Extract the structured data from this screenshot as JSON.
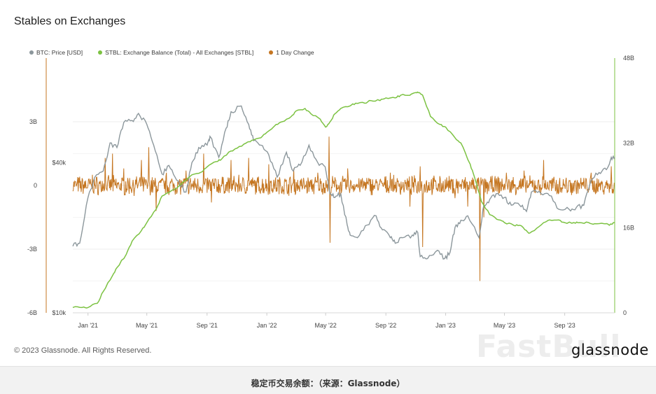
{
  "chart_data": {
    "type": "line",
    "title": "Stables on Exchanges",
    "series": [
      {
        "name": "BTC: Price [USD]",
        "color": "#8c979c",
        "axis": "btc-left",
        "x": [
          "2020-12-01",
          "2020-12-15",
          "2021-01-01",
          "2021-01-15",
          "2021-02-01",
          "2021-02-15",
          "2021-03-01",
          "2021-03-15",
          "2021-04-01",
          "2021-04-14",
          "2021-05-01",
          "2021-05-15",
          "2021-06-01",
          "2021-06-15",
          "2021-07-01",
          "2021-07-20",
          "2021-08-01",
          "2021-08-15",
          "2021-09-01",
          "2021-09-07",
          "2021-09-25",
          "2021-10-10",
          "2021-10-20",
          "2021-11-10",
          "2021-11-25",
          "2021-12-05",
          "2021-12-20",
          "2022-01-05",
          "2022-01-22",
          "2022-02-10",
          "2022-02-24",
          "2022-03-10",
          "2022-03-28",
          "2022-04-15",
          "2022-04-30",
          "2022-05-10",
          "2022-05-20",
          "2022-06-01",
          "2022-06-14",
          "2022-06-20",
          "2022-07-05",
          "2022-07-25",
          "2022-08-12",
          "2022-08-25",
          "2022-09-10",
          "2022-09-20",
          "2022-10-05",
          "2022-10-25",
          "2022-11-05",
          "2022-11-10",
          "2022-11-25",
          "2022-12-15",
          "2022-12-30",
          "2023-01-10",
          "2023-01-20",
          "2023-02-01",
          "2023-02-15",
          "2023-03-10",
          "2023-03-20",
          "2023-04-01",
          "2023-04-14",
          "2023-05-01",
          "2023-05-15",
          "2023-06-01",
          "2023-06-15",
          "2023-06-25",
          "2023-07-15",
          "2023-08-01",
          "2023-08-20",
          "2023-09-10",
          "2023-09-25",
          "2023-10-10",
          "2023-10-25",
          "2023-11-10",
          "2023-11-25",
          "2023-12-05",
          "2023-12-12"
        ],
        "y": [
          18500,
          19000,
          29000,
          35000,
          37000,
          48000,
          46000,
          58000,
          59000,
          63000,
          57000,
          47000,
          36000,
          39000,
          34000,
          30500,
          40000,
          46000,
          47000,
          51000,
          42000,
          55000,
          64000,
          67500,
          57000,
          49000,
          47000,
          43000,
          35000,
          44000,
          37000,
          39000,
          47000,
          40000,
          38500,
          30000,
          29000,
          30000,
          22500,
          20500,
          20000,
          22500,
          24500,
          21500,
          20000,
          19000,
          20000,
          20500,
          21000,
          16800,
          16500,
          17800,
          16500,
          17500,
          22000,
          23500,
          24500,
          20000,
          27000,
          28500,
          30000,
          29000,
          27000,
          27000,
          25500,
          30500,
          30000,
          29500,
          26000,
          26000,
          26500,
          27000,
          34000,
          36500,
          37500,
          42000,
          42000
        ]
      },
      {
        "name": "STBL: Exchange Balance (Total) - All Exchanges [STBL]",
        "color": "#7cc242",
        "axis": "stbl-right",
        "x": [
          "2020-12-01",
          "2020-12-20",
          "2021-01-01",
          "2021-01-20",
          "2021-02-01",
          "2021-02-20",
          "2021-03-01",
          "2021-03-20",
          "2021-04-01",
          "2021-04-20",
          "2021-05-01",
          "2021-05-20",
          "2021-06-01",
          "2021-06-20",
          "2021-07-01",
          "2021-07-20",
          "2021-08-01",
          "2021-08-20",
          "2021-09-01",
          "2021-09-20",
          "2021-10-01",
          "2021-10-20",
          "2021-11-01",
          "2021-11-20",
          "2021-12-01",
          "2021-12-20",
          "2022-01-01",
          "2022-01-20",
          "2022-02-01",
          "2022-02-20",
          "2022-03-01",
          "2022-03-20",
          "2022-04-01",
          "2022-04-20",
          "2022-05-01",
          "2022-05-10",
          "2022-05-20",
          "2022-06-01",
          "2022-06-20",
          "2022-07-01",
          "2022-07-20",
          "2022-08-01",
          "2022-08-20",
          "2022-09-01",
          "2022-09-20",
          "2022-10-01",
          "2022-10-20",
          "2022-11-01",
          "2022-11-08",
          "2022-11-15",
          "2022-12-01",
          "2022-12-20",
          "2023-01-01",
          "2023-01-20",
          "2023-02-01",
          "2023-02-20",
          "2023-03-01",
          "2023-03-15",
          "2023-04-01",
          "2023-04-20",
          "2023-05-01",
          "2023-05-20",
          "2023-06-01",
          "2023-06-15",
          "2023-06-20",
          "2023-07-01",
          "2023-07-20",
          "2023-08-01",
          "2023-08-20",
          "2023-09-01",
          "2023-09-20",
          "2023-10-01",
          "2023-10-20",
          "2023-11-01",
          "2023-11-20",
          "2023-12-01",
          "2023-12-12"
        ],
        "y": [
          1,
          1,
          1,
          1.8,
          4,
          7,
          8.5,
          11,
          13.5,
          15.5,
          17,
          19.5,
          22,
          23,
          23.5,
          25,
          26,
          26.5,
          27.5,
          28.5,
          29,
          30.5,
          31,
          32,
          32.5,
          33,
          34,
          35.5,
          36,
          37,
          38,
          38.5,
          37.5,
          36.5,
          35,
          36,
          37.5,
          38.5,
          39,
          39.5,
          39.5,
          40,
          40,
          40.5,
          40.5,
          41,
          41,
          41.5,
          41.5,
          41,
          37,
          35.5,
          35,
          33,
          32,
          28,
          25.5,
          21,
          18.5,
          17.5,
          17,
          16.5,
          16.5,
          15.5,
          15,
          15.5,
          17,
          17.5,
          17.5,
          17,
          17,
          17,
          17,
          16.8,
          16.8,
          16.5,
          17
        ]
      },
      {
        "name": "1 Day Change",
        "color": "#c57621",
        "axis": "change-left",
        "spikes": [
          {
            "x": "2021-01-10",
            "y": 0.5
          },
          {
            "x": "2021-02-05",
            "y": 1.3
          },
          {
            "x": "2021-02-20",
            "y": 1.5
          },
          {
            "x": "2021-03-15",
            "y": 0.8
          },
          {
            "x": "2021-04-20",
            "y": 1.2
          },
          {
            "x": "2021-05-05",
            "y": 1.8
          },
          {
            "x": "2021-05-20",
            "y": -1.2
          },
          {
            "x": "2021-06-10",
            "y": 0.6
          },
          {
            "x": "2021-07-20",
            "y": 0.7
          },
          {
            "x": "2021-08-25",
            "y": 1.5
          },
          {
            "x": "2021-09-10",
            "y": -0.8
          },
          {
            "x": "2021-10-20",
            "y": 1.2
          },
          {
            "x": "2021-11-05",
            "y": 0.5
          },
          {
            "x": "2021-11-25",
            "y": 1.3
          },
          {
            "x": "2022-01-05",
            "y": 1.0
          },
          {
            "x": "2022-02-25",
            "y": 0.8
          },
          {
            "x": "2022-04-15",
            "y": 0.6
          },
          {
            "x": "2022-05-08",
            "y": 2.3
          },
          {
            "x": "2022-05-10",
            "y": -2.7
          },
          {
            "x": "2022-06-15",
            "y": 0.8
          },
          {
            "x": "2022-09-10",
            "y": 0.6
          },
          {
            "x": "2022-10-20",
            "y": -1.0
          },
          {
            "x": "2022-11-10",
            "y": 0.9
          },
          {
            "x": "2022-11-15",
            "y": -2.9
          },
          {
            "x": "2023-01-20",
            "y": -0.6
          },
          {
            "x": "2023-02-15",
            "y": -1.0
          },
          {
            "x": "2023-03-12",
            "y": -4.5
          },
          {
            "x": "2023-03-20",
            "y": -1.5
          },
          {
            "x": "2023-05-05",
            "y": 0.6
          },
          {
            "x": "2023-06-10",
            "y": 0.7
          },
          {
            "x": "2023-07-20",
            "y": 1.2
          },
          {
            "x": "2023-10-25",
            "y": 0.6
          },
          {
            "x": "2023-12-05",
            "y": 0.9
          }
        ]
      }
    ],
    "x_ticks": [
      "Jan '21",
      "May '21",
      "Sep '21",
      "Jan '22",
      "May '22",
      "Sep '22",
      "Jan '23",
      "May '23",
      "Sep '23"
    ],
    "x_tick_dates": [
      "2021-01-01",
      "2021-05-01",
      "2021-09-01",
      "2022-01-01",
      "2022-05-01",
      "2022-09-01",
      "2023-01-01",
      "2023-05-01",
      "2023-09-01"
    ],
    "xlim": [
      "2020-12-01",
      "2023-12-12"
    ],
    "left_change_ticks": [
      "3B",
      "0",
      "-3B",
      "-6B"
    ],
    "left_change_values": [
      3,
      0,
      -3,
      -6
    ],
    "change_ylim": [
      -6,
      6
    ],
    "left_btc_ticks": [
      "$40k",
      "$10k"
    ],
    "left_btc_values": [
      40000,
      10000
    ],
    "btc_scale": "log",
    "btc_ylim": [
      10000,
      105000
    ],
    "right_ticks": [
      "48B",
      "32B",
      "16B",
      "0"
    ],
    "right_values": [
      48,
      32,
      16,
      0
    ],
    "stbl_ylim": [
      0,
      48
    ],
    "grid": true,
    "legend_position": "top-left"
  },
  "legend": [
    {
      "label": "BTC: Price [USD]",
      "color": "#8c979c"
    },
    {
      "label": "STBL: Exchange Balance (Total) - All Exchanges [STBL]",
      "color": "#7cc242"
    },
    {
      "label": "1 Day Change",
      "color": "#c57621"
    }
  ],
  "footer": {
    "copyright": "© 2023 Glassnode. All Rights Reserved.",
    "brand": "glassnode",
    "watermark": "FastBull",
    "caption": "稳定币交易余额：（来源：Glassnode）"
  }
}
